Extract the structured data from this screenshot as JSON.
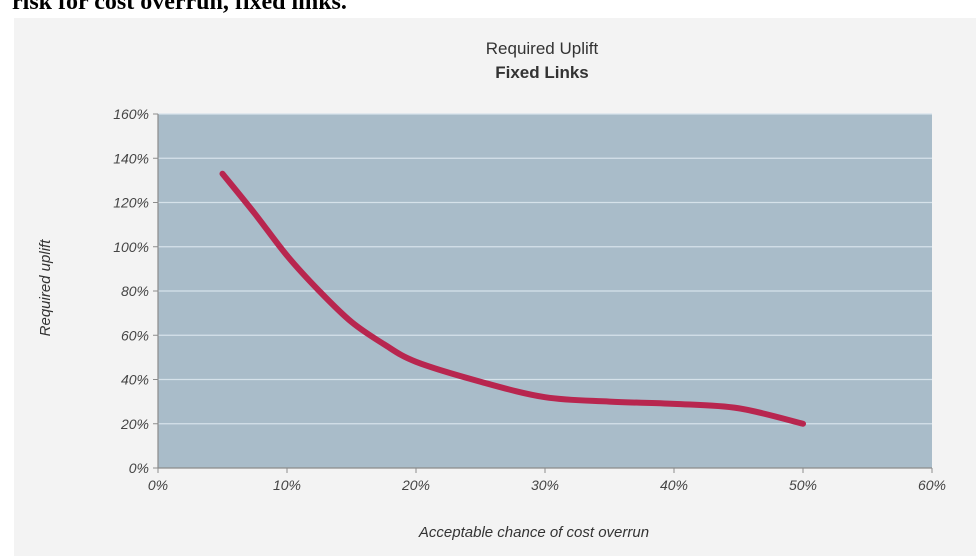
{
  "caption": "risk for cost overrun, fixed links.",
  "chart_data": {
    "type": "line",
    "title": "Required Uplift",
    "subtitle": "Fixed Links",
    "xlabel": "Acceptable chance of cost overrun",
    "ylabel": "Required uplift",
    "xlim": [
      0,
      60
    ],
    "ylim": [
      0,
      160
    ],
    "x_ticks": [
      "0%",
      "10%",
      "20%",
      "30%",
      "40%",
      "50%",
      "60%"
    ],
    "y_ticks": [
      "0%",
      "20%",
      "40%",
      "60%",
      "80%",
      "100%",
      "120%",
      "140%",
      "160%"
    ],
    "grid": true,
    "series": [
      {
        "color": "#b8264f",
        "x": [
          5,
          7.5,
          10,
          12.5,
          15,
          17.5,
          20,
          25,
          30,
          35,
          40,
          45,
          50
        ],
        "y": [
          133,
          115,
          96,
          80,
          66,
          56,
          48,
          39,
          32,
          30,
          29,
          27,
          20
        ]
      }
    ],
    "plot_background": "#a9bcc9",
    "gridline_color": "#d6e2ea"
  }
}
